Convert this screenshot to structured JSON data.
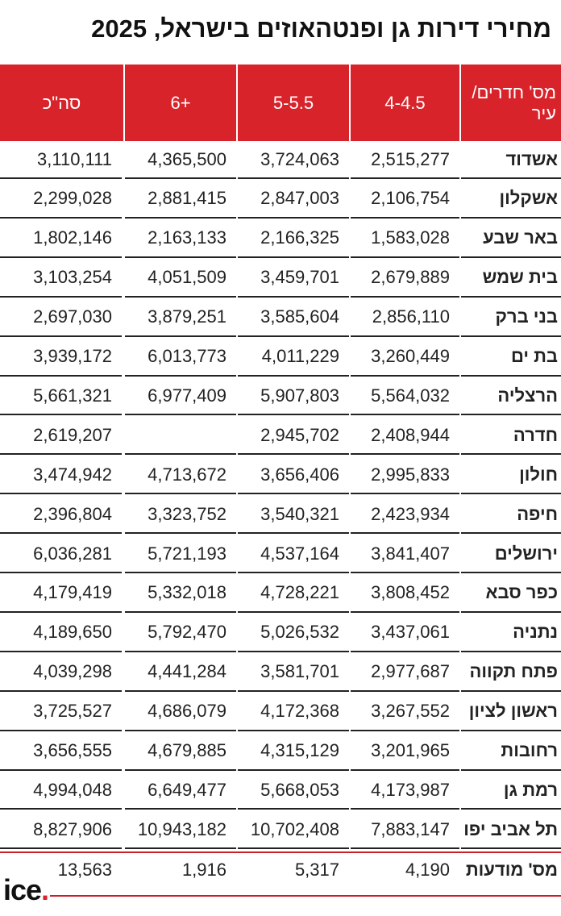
{
  "header": {
    "title": "מחירי דירות גן ופנטהאוזים בישראל, 2025"
  },
  "table": {
    "columns": [
      "מס' חדרים/ עיר",
      "4-4.5",
      "5-5.5",
      "+6",
      "סה\"כ"
    ],
    "rows": [
      [
        "אשדוד",
        "2,515,277",
        "3,724,063",
        "4,365,500",
        "3,110,111"
      ],
      [
        "אשקלון",
        "2,106,754",
        "2,847,003",
        "2,881,415",
        "2,299,028"
      ],
      [
        "באר שבע",
        "1,583,028",
        "2,166,325",
        "2,163,133",
        "1,802,146"
      ],
      [
        "בית שמש",
        "2,679,889",
        "3,459,701",
        "4,051,509",
        "3,103,254"
      ],
      [
        "בני ברק",
        "2,856,110",
        "3,585,604",
        "3,879,251",
        "2,697,030"
      ],
      [
        "בת ים",
        "3,260,449",
        "4,011,229",
        "6,013,773",
        "3,939,172"
      ],
      [
        "הרצליה",
        "5,564,032",
        "5,907,803",
        "6,977,409",
        "5,661,321"
      ],
      [
        "חדרה",
        "2,408,944",
        "2,945,702",
        null,
        "2,619,207"
      ],
      [
        "חולון",
        "2,995,833",
        "3,656,406",
        "4,713,672",
        "3,474,942"
      ],
      [
        "חיפה",
        "2,423,934",
        "3,540,321",
        "3,323,752",
        "2,396,804"
      ],
      [
        "ירושלים",
        "3,841,407",
        "4,537,164",
        "5,721,193",
        "6,036,281"
      ],
      [
        "כפר סבא",
        "3,808,452",
        "4,728,221",
        "5,332,018",
        "4,179,419"
      ],
      [
        "נתניה",
        "3,437,061",
        "5,026,532",
        "5,792,470",
        "4,189,650"
      ],
      [
        "פתח תקווה",
        "2,977,687",
        "3,581,701",
        "4,441,284",
        "4,039,298"
      ],
      [
        "ראשון לציון",
        "3,267,552",
        "4,172,368",
        "4,686,079",
        "3,725,527"
      ],
      [
        "רחובות",
        "3,201,965",
        "4,315,129",
        "4,679,885",
        "3,656,555"
      ],
      [
        "רמת גן",
        "4,173,987",
        "5,668,053",
        "6,649,477",
        "4,994,048"
      ],
      [
        "תל אביב יפו",
        "7,883,147",
        "10,702,408",
        "10,943,182",
        "8,827,906"
      ]
    ],
    "footer_row": [
      "מס' מודעות",
      "4,190",
      "5,317",
      "1,916",
      "13,563"
    ]
  },
  "footer": {
    "logo": "ice",
    "logo_dot": "."
  }
}
